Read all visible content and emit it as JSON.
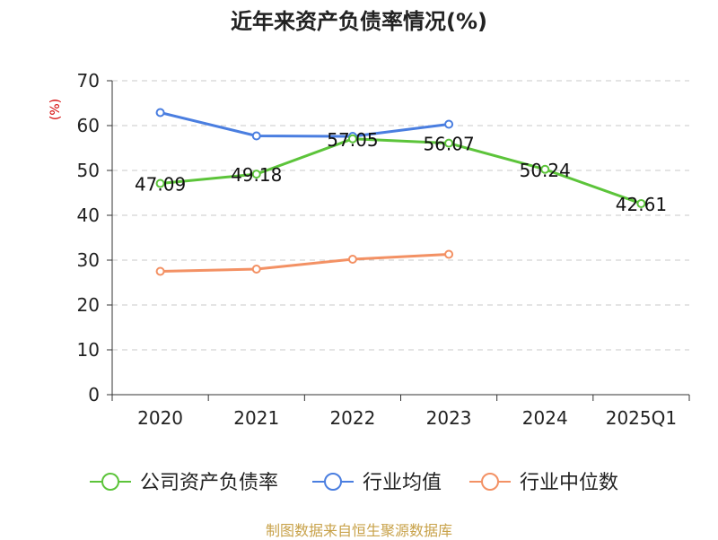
{
  "chart_data": {
    "type": "line",
    "title": "近年来资产负债率情况(%)",
    "ylabel": "(%)",
    "xlabel": "",
    "categories": [
      "2020",
      "2021",
      "2022",
      "2023",
      "2024",
      "2025Q1"
    ],
    "ylim": [
      0,
      70
    ],
    "yticks": [
      0,
      10,
      20,
      30,
      40,
      50,
      60,
      70
    ],
    "grid": true,
    "legend_position": "bottom",
    "series": [
      {
        "name": "公司资产负债率",
        "color": "#5cc43a",
        "values": [
          47.09,
          49.18,
          57.05,
          56.07,
          50.24,
          42.61
        ],
        "labels": [
          "47.09",
          "49.18",
          "57.05",
          "56.07",
          "50.24",
          "42.61"
        ]
      },
      {
        "name": "行业均值",
        "color": "#4a7ee0",
        "values": [
          62.9,
          57.7,
          57.6,
          60.3,
          null,
          null
        ]
      },
      {
        "name": "行业中位数",
        "color": "#f39164",
        "values": [
          27.5,
          28.0,
          30.2,
          31.3,
          null,
          null
        ]
      }
    ]
  },
  "footer": {
    "source": "制图数据来自恒生聚源数据库"
  }
}
